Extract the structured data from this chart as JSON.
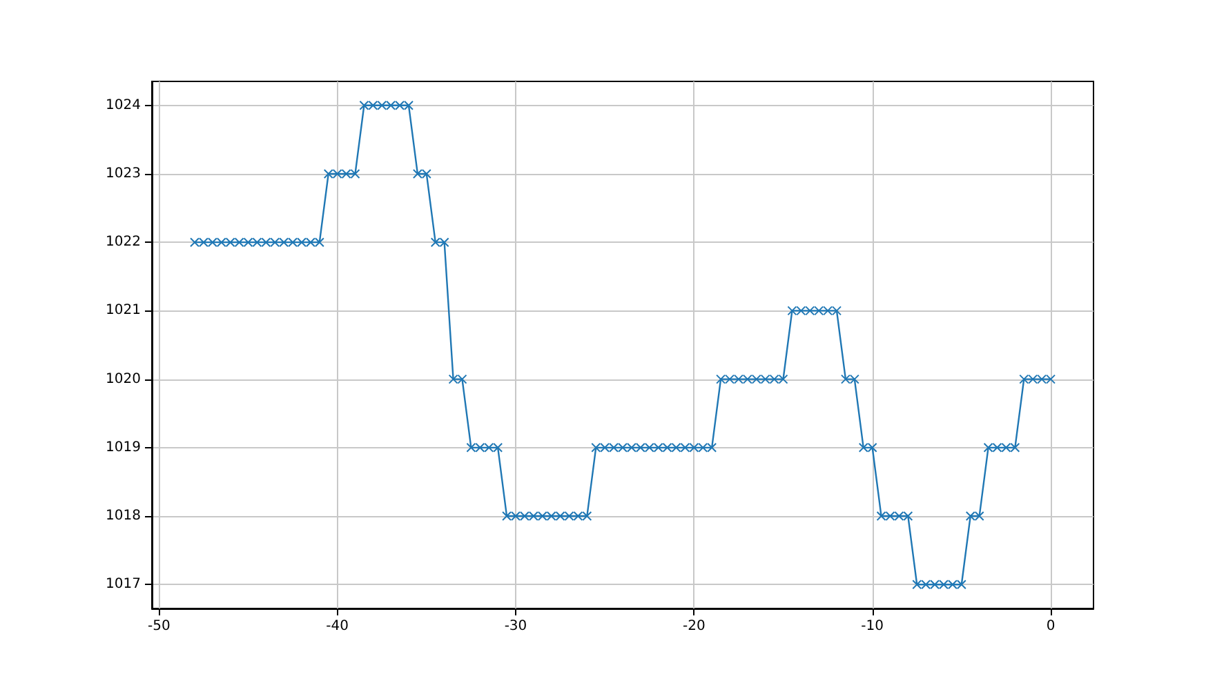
{
  "chart_data": {
    "type": "line",
    "x": [
      -48,
      -47.5,
      -47,
      -46.5,
      -46,
      -45.5,
      -45,
      -44.5,
      -44,
      -43.5,
      -43,
      -42.5,
      -42,
      -41.5,
      -41,
      -40.5,
      -40,
      -39.5,
      -39,
      -38.5,
      -38,
      -37.5,
      -37,
      -36.5,
      -36,
      -35.5,
      -35,
      -34.5,
      -34,
      -33.5,
      -33,
      -32.5,
      -32,
      -31.5,
      -31,
      -30.5,
      -30,
      -29.5,
      -29,
      -28.5,
      -28,
      -27.5,
      -27,
      -26.5,
      -26,
      -25.5,
      -25,
      -24.5,
      -24,
      -23.5,
      -23,
      -22.5,
      -22,
      -21.5,
      -21,
      -20.5,
      -20,
      -19.5,
      -19,
      -18.5,
      -18,
      -17.5,
      -17,
      -16.5,
      -16,
      -15.5,
      -15,
      -14.5,
      -14,
      -13.5,
      -13,
      -12.5,
      -12,
      -11.5,
      -11,
      -10.5,
      -10,
      -9.5,
      -9,
      -8.5,
      -8,
      -7.5,
      -7,
      -6.5,
      -6,
      -5.5,
      -5,
      -4.5,
      -4,
      -3.5,
      -3,
      -2.5,
      -2,
      -1.5,
      -1,
      -0.5,
      0
    ],
    "series": [
      {
        "color": "#1f77b4",
        "values": [
          1022,
          1022,
          1022,
          1022,
          1022,
          1022,
          1022,
          1022,
          1022,
          1022,
          1022,
          1022,
          1022,
          1022,
          1022,
          1023,
          1023,
          1023,
          1023,
          1024,
          1024,
          1024,
          1024,
          1024,
          1024,
          1023,
          1023,
          1022,
          1022,
          1020,
          1020,
          1019,
          1019,
          1019,
          1019,
          1018,
          1018,
          1018,
          1018,
          1018,
          1018,
          1018,
          1018,
          1018,
          1018,
          1019,
          1019,
          1019,
          1019,
          1019,
          1019,
          1019,
          1019,
          1019,
          1019,
          1019,
          1019,
          1019,
          1019,
          1020,
          1020,
          1020,
          1020,
          1020,
          1020,
          1020,
          1020,
          1021,
          1021,
          1021,
          1021,
          1021,
          1021,
          1020,
          1020,
          1019,
          1019,
          1018,
          1018,
          1018,
          1018,
          1017,
          1017,
          1017,
          1017,
          1017,
          1017,
          1018,
          1018,
          1019,
          1019,
          1019,
          1019,
          1020,
          1020,
          1020,
          1020
        ]
      }
    ],
    "xlim": [
      -50.4,
      2.4
    ],
    "xticks": [
      -50,
      -40,
      -30,
      -20,
      -10,
      0
    ],
    "ylim": [
      1016.65,
      1024.35
    ],
    "yticks": [
      1017,
      1018,
      1019,
      1020,
      1021,
      1022,
      1023,
      1024
    ],
    "grid": true,
    "marker": "cross",
    "line_style": "solid"
  }
}
